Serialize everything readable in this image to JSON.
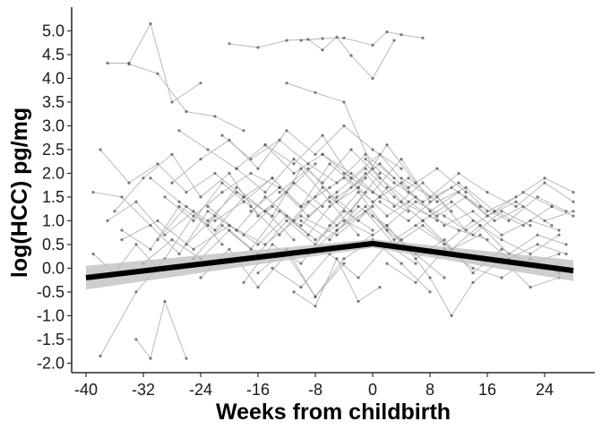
{
  "chart_data": {
    "type": "line",
    "title": "",
    "xlabel": "Weeks from childbirth",
    "ylabel": "log(HCC) pg/mg",
    "xlim": [
      -42,
      31
    ],
    "ylim": [
      -2.2,
      5.5
    ],
    "x_ticks": [
      -40,
      -32,
      -24,
      -16,
      -8,
      0,
      8,
      16,
      24
    ],
    "y_ticks": [
      5.0,
      4.5,
      4.0,
      3.5,
      3.0,
      2.5,
      2.0,
      1.5,
      1.0,
      0.5,
      0.0,
      -0.5,
      -1.0,
      -1.5,
      -2.0
    ],
    "y_tick_labels": [
      "5.0",
      "4.5",
      "4.0",
      "3.5",
      "3.0",
      "2.5",
      "2.0",
      "1.5",
      "1.0",
      "0.5",
      "0.0",
      "-0.5",
      "-1.0",
      "-1.5",
      "-2.0"
    ],
    "grid": false,
    "legend": "none",
    "colors": {
      "trend": "#000000",
      "ci_band": "#bdbdbd",
      "individual_lines": "#b3b3b3",
      "points": "#555555"
    },
    "fitted_trend": {
      "x": [
        -40,
        0,
        28
      ],
      "y": [
        -0.2,
        0.52,
        -0.05
      ],
      "ci_lower": [
        -0.45,
        0.43,
        -0.27
      ],
      "ci_upper": [
        0.05,
        0.61,
        0.17
      ]
    },
    "individual_trajectories": [
      {
        "x": [
          -37,
          -34,
          -31,
          -28,
          -24
        ],
        "y": [
          4.32,
          4.32,
          5.15,
          3.5,
          3.9
        ]
      },
      {
        "x": [
          -20,
          -16,
          -12,
          -9,
          -7,
          -5,
          -3,
          0,
          3
        ],
        "y": [
          4.73,
          4.65,
          4.8,
          4.82,
          4.6,
          4.87,
          4.48,
          4.0,
          4.8
        ]
      },
      {
        "x": [
          -10,
          -7,
          -4,
          0,
          2,
          4,
          7
        ],
        "y": [
          4.8,
          4.84,
          4.85,
          4.7,
          4.98,
          4.92,
          4.85
        ]
      },
      {
        "x": [
          -34,
          -30,
          -26,
          -22,
          -18
        ],
        "y": [
          4.3,
          4.1,
          3.3,
          3.2,
          2.9
        ]
      },
      {
        "x": [
          -39,
          -35,
          -31,
          -27,
          -23,
          -19
        ],
        "y": [
          1.6,
          1.5,
          0.9,
          0.3,
          1.2,
          0.8
        ]
      },
      {
        "x": [
          -38,
          -33,
          -29,
          -25,
          -21,
          -17,
          -13
        ],
        "y": [
          -1.85,
          -0.5,
          0.2,
          1.1,
          1.6,
          2.0,
          1.7
        ]
      },
      {
        "x": [
          -33,
          -31,
          -29,
          -26
        ],
        "y": [
          -1.5,
          -1.9,
          -0.7,
          -1.9
        ]
      },
      {
        "x": [
          -36,
          -32,
          -28,
          -24,
          -20,
          -16,
          -12,
          -8
        ],
        "y": [
          1.2,
          1.9,
          2.4,
          1.5,
          2.0,
          1.1,
          1.6,
          2.2
        ]
      },
      {
        "x": [
          -30,
          -26,
          -22,
          -18,
          -14,
          -10,
          -6,
          -2
        ],
        "y": [
          0.6,
          1.3,
          0.8,
          1.5,
          1.1,
          2.1,
          1.4,
          0.7
        ]
      },
      {
        "x": [
          -28,
          -24,
          -20,
          -16,
          -12,
          -8,
          -4,
          0,
          4
        ],
        "y": [
          1.8,
          2.3,
          2.7,
          2.1,
          2.9,
          2.4,
          3.0,
          2.5,
          2.1
        ]
      },
      {
        "x": [
          -25,
          -21,
          -17,
          -13,
          -9,
          -5,
          -1
        ],
        "y": [
          0.2,
          0.9,
          0.4,
          1.2,
          0.7,
          1.5,
          1.9
        ]
      },
      {
        "x": [
          -22,
          -18,
          -14,
          -10,
          -6,
          -2,
          2,
          6
        ],
        "y": [
          1.0,
          1.4,
          1.9,
          1.3,
          2.2,
          1.7,
          2.6,
          1.8
        ]
      },
      {
        "x": [
          -18,
          -14,
          -10,
          -6,
          -2,
          2,
          6,
          10
        ],
        "y": [
          -0.3,
          0.5,
          0.1,
          0.9,
          1.6,
          0.8,
          0.3,
          -0.2
        ]
      },
      {
        "x": [
          -12,
          -8,
          -4,
          0,
          4,
          8,
          12,
          16
        ],
        "y": [
          3.9,
          3.7,
          3.5,
          2.1,
          1.4,
          1.1,
          0.8,
          0.6
        ]
      },
      {
        "x": [
          -6,
          -2,
          2,
          6,
          10,
          14,
          18,
          22,
          26
        ],
        "y": [
          1.3,
          1.7,
          1.1,
          1.5,
          0.9,
          1.2,
          0.7,
          1.0,
          0.8
        ]
      },
      {
        "x": [
          -4,
          0,
          4,
          8,
          12,
          16,
          20,
          24,
          28
        ],
        "y": [
          2.0,
          1.6,
          2.3,
          1.4,
          1.8,
          1.2,
          1.5,
          1.9,
          1.6
        ]
      },
      {
        "x": [
          -2,
          2,
          6,
          10,
          14,
          18,
          22,
          26
        ],
        "y": [
          0.5,
          0.9,
          0.2,
          0.6,
          -0.1,
          0.4,
          0.1,
          0.3
        ]
      },
      {
        "x": [
          0,
          4,
          8,
          11,
          14,
          18,
          22,
          26
        ],
        "y": [
          1.1,
          0.6,
          -0.2,
          -1.0,
          -0.3,
          0.2,
          -0.4,
          -0.2
        ]
      },
      {
        "x": [
          -9,
          -5,
          -1,
          3,
          7,
          11,
          15,
          19,
          23,
          27
        ],
        "y": [
          0.3,
          0.8,
          1.2,
          0.5,
          0.9,
          0.4,
          0.7,
          0.2,
          0.5,
          0.3
        ]
      },
      {
        "x": [
          -15,
          -11,
          -7,
          -3,
          1,
          5,
          9,
          13
        ],
        "y": [
          2.6,
          2.2,
          2.8,
          1.9,
          2.4,
          1.7,
          2.1,
          1.6
        ]
      },
      {
        "x": [
          -35,
          -31,
          -27,
          -23,
          -19,
          -15,
          -11
        ],
        "y": [
          0.8,
          0.4,
          1.3,
          0.9,
          1.7,
          1.2,
          0.6
        ]
      },
      {
        "x": [
          -29,
          -25,
          -21,
          -17,
          -13,
          -9,
          -5,
          -1
        ],
        "y": [
          1.5,
          1.0,
          1.8,
          1.3,
          0.7,
          1.4,
          0.9,
          1.6
        ]
      },
      {
        "x": [
          -24,
          -20,
          -16,
          -12,
          -8,
          -4
        ],
        "y": [
          -0.2,
          0.4,
          -0.4,
          0.3,
          -0.6,
          0.1
        ]
      },
      {
        "x": [
          -20,
          -16,
          -12,
          -8,
          -4,
          0
        ],
        "y": [
          0.9,
          0.5,
          1.1,
          0.6,
          1.0,
          0.7
        ]
      },
      {
        "x": [
          -11,
          -8,
          -5,
          -2,
          1
        ],
        "y": [
          -0.5,
          -0.8,
          0.2,
          -0.7,
          -0.4
        ]
      },
      {
        "x": [
          -8,
          -4,
          0,
          4,
          8,
          12,
          16,
          20,
          24,
          28
        ],
        "y": [
          1.5,
          1.9,
          1.4,
          1.8,
          1.2,
          1.6,
          1.1,
          1.4,
          1.0,
          1.2
        ]
      },
      {
        "x": [
          -1,
          3,
          7,
          11,
          15,
          19,
          23,
          27
        ],
        "y": [
          2.3,
          1.8,
          1.4,
          1.7,
          1.3,
          1.0,
          1.5,
          1.2
        ]
      },
      {
        "x": [
          2,
          6,
          10,
          14,
          18,
          22,
          26
        ],
        "y": [
          0.1,
          -0.3,
          0.4,
          0.0,
          -0.2,
          0.2,
          -0.1
        ]
      },
      {
        "x": [
          -38,
          -34,
          -30,
          -26,
          -22,
          -18,
          -14,
          -10,
          -6
        ],
        "y": [
          2.5,
          1.8,
          2.2,
          1.6,
          2.0,
          1.5,
          1.9,
          1.3,
          1.7
        ]
      },
      {
        "x": [
          -32,
          -28,
          -24,
          -20,
          -16,
          -12,
          -8,
          -4,
          0
        ],
        "y": [
          0.1,
          0.6,
          0.2,
          0.8,
          0.3,
          1.0,
          0.5,
          1.2,
          0.8
        ]
      },
      {
        "x": [
          -27,
          -23,
          -19,
          -15,
          -11,
          -7,
          -3,
          1,
          5
        ],
        "y": [
          2.9,
          2.5,
          2.1,
          2.6,
          2.0,
          2.4,
          1.9,
          1.5,
          1.2
        ]
      },
      {
        "x": [
          -16,
          -12,
          -8,
          -4,
          0,
          4,
          8
        ],
        "y": [
          -0.1,
          0.4,
          -0.6,
          0.2,
          0.6,
          0.1,
          -0.5
        ]
      },
      {
        "x": [
          -13,
          -9,
          -5,
          -1,
          3,
          7,
          11
        ],
        "y": [
          1.6,
          2.1,
          1.4,
          2.0,
          1.3,
          1.8,
          1.2
        ]
      },
      {
        "x": [
          -5,
          -1,
          3,
          7,
          11,
          15,
          19,
          23,
          27
        ],
        "y": [
          0.8,
          1.3,
          0.6,
          1.0,
          0.4,
          0.9,
          0.3,
          0.7,
          0.5
        ]
      },
      {
        "x": [
          4,
          8,
          12,
          16,
          20,
          24,
          28
        ],
        "y": [
          1.9,
          1.5,
          2.0,
          1.6,
          1.3,
          1.8,
          1.4
        ]
      },
      {
        "x": [
          -37,
          -33,
          -29,
          -25,
          -21
        ],
        "y": [
          1.0,
          1.4,
          0.7,
          1.2,
          0.5
        ]
      },
      {
        "x": [
          -23,
          -19,
          -15,
          -11,
          -7,
          -3,
          1
        ],
        "y": [
          1.3,
          0.8,
          1.5,
          1.0,
          1.7,
          1.2,
          2.0
        ]
      },
      {
        "x": [
          -19,
          -15,
          -11,
          -7,
          -3,
          1,
          5,
          9
        ],
        "y": [
          2.1,
          1.6,
          2.3,
          1.8,
          2.5,
          1.9,
          1.4,
          1.0
        ]
      },
      {
        "x": [
          -10,
          -6,
          -2,
          2,
          6,
          10,
          14,
          18,
          22
        ],
        "y": [
          1.0,
          0.6,
          1.3,
          0.9,
          1.4,
          1.1,
          0.7,
          1.2,
          0.9
        ]
      },
      {
        "x": [
          -7,
          -3,
          1,
          5,
          9,
          13,
          17,
          21,
          25
        ],
        "y": [
          2.4,
          2.0,
          1.5,
          1.9,
          1.4,
          1.7,
          1.2,
          1.6,
          1.3
        ]
      },
      {
        "x": [
          1,
          5,
          9,
          13,
          17,
          21,
          25,
          28
        ],
        "y": [
          1.4,
          1.0,
          1.5,
          0.8,
          1.2,
          0.9,
          1.3,
          1.1
        ]
      },
      {
        "x": [
          -39,
          -36,
          -33,
          -30
        ],
        "y": [
          0.3,
          -0.1,
          0.5,
          0.0
        ]
      },
      {
        "x": [
          -31,
          -27,
          -23,
          -19,
          -15,
          -11,
          -7
        ],
        "y": [
          1.9,
          1.4,
          1.0,
          1.6,
          1.2,
          1.8,
          1.3
        ]
      },
      {
        "x": [
          -26,
          -22,
          -18,
          -14,
          -10,
          -6,
          -2,
          2
        ],
        "y": [
          0.5,
          1.1,
          0.7,
          1.3,
          0.9,
          1.5,
          1.0,
          1.7
        ]
      },
      {
        "x": [
          -3,
          1,
          5,
          9,
          13,
          17,
          21,
          25
        ],
        "y": [
          1.7,
          2.2,
          1.6,
          1.1,
          1.5,
          1.0,
          1.3,
          0.9
        ]
      },
      {
        "x": [
          -14,
          -10,
          -6,
          -2,
          2,
          6
        ],
        "y": [
          0.0,
          -0.4,
          0.3,
          -0.2,
          0.5,
          0.1
        ]
      },
      {
        "x": [
          -17,
          -13,
          -9,
          -5,
          -1,
          3,
          7,
          11,
          15
        ],
        "y": [
          1.2,
          1.7,
          1.1,
          1.6,
          2.1,
          1.5,
          1.0,
          1.4,
          0.9
        ]
      },
      {
        "x": [
          6,
          10,
          14,
          18,
          22,
          26
        ],
        "y": [
          0.9,
          0.5,
          1.0,
          0.6,
          0.3,
          0.7
        ]
      },
      {
        "x": [
          -35,
          -30,
          -25,
          -20,
          -15,
          -10,
          -5,
          0
        ],
        "y": [
          0.6,
          1.0,
          0.4,
          0.9,
          0.5,
          1.1,
          0.7,
          1.3
        ]
      },
      {
        "x": [
          -21,
          -17,
          -13,
          -9,
          -5,
          -1,
          3
        ],
        "y": [
          2.8,
          2.3,
          2.7,
          2.2,
          1.8,
          2.4,
          1.9
        ]
      }
    ]
  }
}
